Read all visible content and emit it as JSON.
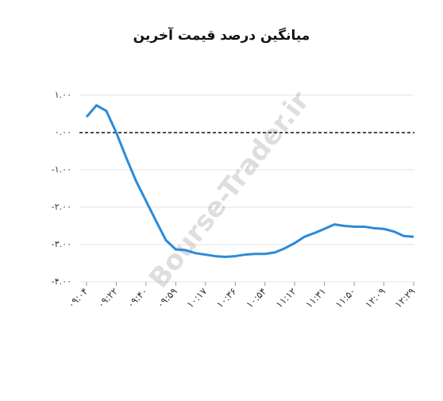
{
  "chart_data": {
    "type": "line",
    "title": "میانگین درصد قیمت آخرین",
    "watermark": "Bourse-Trader.ir",
    "categories": [
      "۰۹:۰۴",
      null,
      null,
      "۰۹:۲۲",
      null,
      null,
      "۰۹:۴۰",
      null,
      null,
      "۰۹:۵۹",
      null,
      null,
      "۱۰:۱۷",
      null,
      null,
      "۱۰:۳۶",
      null,
      null,
      "۱۰:۵۴",
      null,
      null,
      "۱۱:۱۲",
      null,
      null,
      "۱۱:۳۱",
      null,
      null,
      "۱۱:۵۰",
      null,
      null,
      "۱۲:۰۹",
      null,
      null,
      "۱۲:۲۹"
    ],
    "series": [
      {
        "color": "#2b8ad8",
        "values": [
          0.42,
          0.73,
          0.58,
          0.0,
          -0.67,
          -1.3,
          -1.83,
          -2.36,
          -2.88,
          -3.13,
          -3.15,
          -3.23,
          -3.27,
          -3.31,
          -3.33,
          -3.31,
          -3.27,
          -3.25,
          -3.25,
          -3.21,
          -3.1,
          -2.96,
          -2.79,
          -2.69,
          -2.58,
          -2.46,
          -2.5,
          -2.52,
          -2.52,
          -2.56,
          -2.58,
          -2.65,
          -2.77,
          -2.79
        ]
      }
    ],
    "ylim": [
      -4,
      1
    ],
    "yticks": [
      {
        "value": 1,
        "label": "۱.۰۰"
      },
      {
        "value": 0,
        "label": "۰.۰۰"
      },
      {
        "value": -1,
        "label": "-۱.۰۰"
      },
      {
        "value": -2,
        "label": "-۲.۰۰"
      },
      {
        "value": -3,
        "label": "-۳.۰۰"
      },
      {
        "value": -4,
        "label": "-۴.۰۰"
      }
    ],
    "grid": true,
    "zero_line": true
  }
}
